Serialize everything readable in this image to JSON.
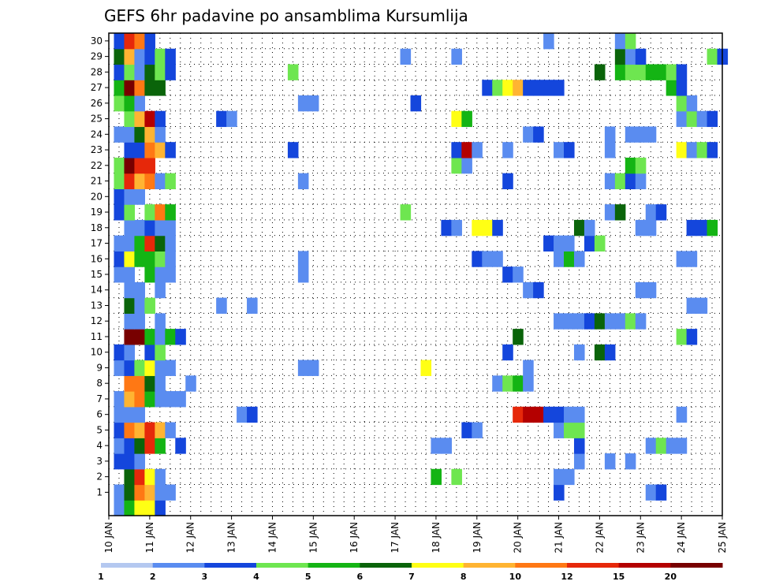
{
  "chart_data": {
    "type": "heatmap",
    "title": "GEFS 6hr padavine po ansamblima Kursumlija",
    "y_ticks": [
      "1",
      "2",
      "3",
      "4",
      "5",
      "6",
      "7",
      "8",
      "9",
      "10",
      "11",
      "12",
      "13",
      "14",
      "15",
      "16",
      "17",
      "18",
      "19",
      "20",
      "21",
      "22",
      "23",
      "24",
      "25",
      "26",
      "27",
      "28",
      "29",
      "30"
    ],
    "ylim": [
      0,
      30
    ],
    "x_ticks": [
      "10 JAN",
      "11 JAN",
      "12 JAN",
      "13 JAN",
      "14 JAN",
      "15 JAN",
      "16 JAN",
      "17 JAN",
      "18 JAN",
      "19 JAN",
      "20 JAN",
      "21 JAN",
      "22 JAN",
      "23 JAN",
      "24 JAN",
      "25 JAN"
    ],
    "xlim_days": [
      10,
      25
    ],
    "time_step_hours": 6,
    "legend": {
      "position": "bottom",
      "labels": [
        "1",
        "2",
        "3",
        "4",
        "5",
        "6",
        "7",
        "8",
        "10",
        "12",
        "15",
        "20"
      ],
      "colors": [
        "#b4c8f0",
        "#5a8cf0",
        "#1446dc",
        "#6ee650",
        "#14b414",
        "#0a640a",
        "#ffff14",
        "#ffb432",
        "#ff7814",
        "#e6280a",
        "#b40000",
        "#780000"
      ]
    },
    "cells": [
      [
        0,
        0.25,
        1
      ],
      [
        0,
        0.5,
        4
      ],
      [
        0,
        0.75,
        6
      ],
      [
        0,
        1.0,
        6
      ],
      [
        0,
        1.25,
        2
      ],
      [
        1,
        0.25,
        1
      ],
      [
        1,
        0.5,
        5
      ],
      [
        1,
        0.75,
        8
      ],
      [
        1,
        1.0,
        7
      ],
      [
        1,
        1.25,
        1
      ],
      [
        1,
        1.5,
        1
      ],
      [
        1,
        11.0,
        2
      ],
      [
        1,
        13.25,
        1
      ],
      [
        1,
        13.5,
        2
      ],
      [
        2,
        0.5,
        5
      ],
      [
        2,
        0.75,
        9
      ],
      [
        2,
        1.0,
        6
      ],
      [
        2,
        1.25,
        1
      ],
      [
        2,
        8.0,
        4
      ],
      [
        2,
        8.5,
        3
      ],
      [
        2,
        11.0,
        1
      ],
      [
        2,
        11.25,
        1
      ],
      [
        3,
        0.25,
        2
      ],
      [
        3,
        0.5,
        2
      ],
      [
        3,
        0.75,
        1
      ],
      [
        3,
        11.5,
        1
      ],
      [
        3,
        12.25,
        1
      ],
      [
        3,
        12.75,
        1
      ],
      [
        4,
        0.25,
        1
      ],
      [
        4,
        0.5,
        2
      ],
      [
        4,
        0.75,
        5
      ],
      [
        4,
        1.0,
        9
      ],
      [
        4,
        1.25,
        4
      ],
      [
        4,
        1.75,
        2
      ],
      [
        4,
        8.0,
        1
      ],
      [
        4,
        8.25,
        1
      ],
      [
        4,
        11.5,
        2
      ],
      [
        4,
        13.25,
        1
      ],
      [
        4,
        13.5,
        3
      ],
      [
        4,
        13.75,
        1
      ],
      [
        4,
        14.0,
        1
      ],
      [
        5,
        0.25,
        2
      ],
      [
        5,
        0.5,
        8
      ],
      [
        5,
        0.75,
        7
      ],
      [
        5,
        1.0,
        9
      ],
      [
        5,
        1.25,
        7
      ],
      [
        5,
        1.5,
        1
      ],
      [
        5,
        8.75,
        2
      ],
      [
        5,
        9.0,
        1
      ],
      [
        5,
        11.0,
        1
      ],
      [
        5,
        11.25,
        3
      ],
      [
        5,
        11.5,
        3
      ],
      [
        6,
        0.25,
        1
      ],
      [
        6,
        0.5,
        1
      ],
      [
        6,
        0.75,
        1
      ],
      [
        6,
        3.25,
        1
      ],
      [
        6,
        3.5,
        2
      ],
      [
        6,
        10.0,
        9
      ],
      [
        6,
        10.25,
        10
      ],
      [
        6,
        10.5,
        10
      ],
      [
        6,
        10.75,
        2
      ],
      [
        6,
        11.0,
        2
      ],
      [
        6,
        11.25,
        1
      ],
      [
        6,
        11.5,
        1
      ],
      [
        6,
        14.0,
        1
      ],
      [
        7,
        0.25,
        1
      ],
      [
        7,
        0.5,
        7
      ],
      [
        7,
        0.75,
        8
      ],
      [
        7,
        1.0,
        4
      ],
      [
        7,
        1.25,
        1
      ],
      [
        7,
        1.5,
        1
      ],
      [
        7,
        1.75,
        1
      ],
      [
        8,
        0.5,
        8
      ],
      [
        8,
        0.75,
        8
      ],
      [
        8,
        1.0,
        5
      ],
      [
        8,
        1.25,
        1
      ],
      [
        8,
        2.0,
        1
      ],
      [
        8,
        9.5,
        1
      ],
      [
        8,
        9.75,
        3
      ],
      [
        8,
        10.0,
        4
      ],
      [
        8,
        10.25,
        1
      ],
      [
        9,
        0.25,
        1
      ],
      [
        9,
        0.5,
        2
      ],
      [
        9,
        0.75,
        3
      ],
      [
        9,
        1.0,
        6
      ],
      [
        9,
        1.25,
        1
      ],
      [
        9,
        1.5,
        1
      ],
      [
        9,
        4.75,
        1
      ],
      [
        9,
        5.0,
        1
      ],
      [
        9,
        7.75,
        6
      ],
      [
        9,
        10.25,
        1
      ],
      [
        10,
        0.25,
        2
      ],
      [
        10,
        0.5,
        1
      ],
      [
        10,
        1.0,
        2
      ],
      [
        10,
        1.25,
        3
      ],
      [
        10,
        9.75,
        2
      ],
      [
        10,
        11.5,
        1
      ],
      [
        10,
        12.0,
        5
      ],
      [
        10,
        12.25,
        2
      ],
      [
        11,
        0.5,
        11
      ],
      [
        11,
        0.75,
        11
      ],
      [
        11,
        1.0,
        4
      ],
      [
        11,
        1.25,
        1
      ],
      [
        11,
        1.5,
        4
      ],
      [
        11,
        1.75,
        2
      ],
      [
        11,
        10.0,
        5
      ],
      [
        11,
        14.0,
        3
      ],
      [
        11,
        14.25,
        2
      ],
      [
        12,
        0.5,
        1
      ],
      [
        12,
        0.75,
        1
      ],
      [
        12,
        1.25,
        1
      ],
      [
        12,
        11.0,
        1
      ],
      [
        12,
        11.25,
        1
      ],
      [
        12,
        11.5,
        1
      ],
      [
        12,
        11.75,
        2
      ],
      [
        12,
        12.0,
        5
      ],
      [
        12,
        12.25,
        1
      ],
      [
        12,
        12.5,
        1
      ],
      [
        12,
        12.75,
        3
      ],
      [
        12,
        13.0,
        1
      ],
      [
        13,
        0.5,
        5
      ],
      [
        13,
        0.75,
        1
      ],
      [
        13,
        1.0,
        3
      ],
      [
        13,
        2.75,
        1
      ],
      [
        13,
        3.5,
        1
      ],
      [
        13,
        14.25,
        1
      ],
      [
        13,
        14.5,
        1
      ],
      [
        14,
        0.5,
        1
      ],
      [
        14,
        0.75,
        1
      ],
      [
        14,
        1.25,
        1
      ],
      [
        14,
        10.25,
        1
      ],
      [
        14,
        10.5,
        2
      ],
      [
        14,
        13.0,
        1
      ],
      [
        14,
        13.25,
        1
      ],
      [
        15,
        0.25,
        1
      ],
      [
        15,
        0.5,
        1
      ],
      [
        15,
        1.0,
        4
      ],
      [
        15,
        1.25,
        1
      ],
      [
        15,
        1.5,
        1
      ],
      [
        15,
        4.75,
        1
      ],
      [
        15,
        9.75,
        2
      ],
      [
        15,
        10.0,
        1
      ],
      [
        16,
        0.25,
        2
      ],
      [
        16,
        0.5,
        6
      ],
      [
        16,
        0.75,
        4
      ],
      [
        16,
        1.0,
        4
      ],
      [
        16,
        1.25,
        3
      ],
      [
        16,
        1.5,
        1
      ],
      [
        16,
        4.75,
        1
      ],
      [
        16,
        9.0,
        2
      ],
      [
        16,
        9.25,
        1
      ],
      [
        16,
        9.5,
        1
      ],
      [
        16,
        11.0,
        1
      ],
      [
        16,
        11.25,
        4
      ],
      [
        16,
        11.5,
        1
      ],
      [
        16,
        14.0,
        1
      ],
      [
        16,
        14.25,
        1
      ],
      [
        17,
        0.25,
        1
      ],
      [
        17,
        0.5,
        1
      ],
      [
        17,
        0.75,
        4
      ],
      [
        17,
        1.0,
        9
      ],
      [
        17,
        1.25,
        5
      ],
      [
        17,
        1.5,
        1
      ],
      [
        17,
        10.75,
        2
      ],
      [
        17,
        11.0,
        1
      ],
      [
        17,
        11.25,
        1
      ],
      [
        17,
        11.75,
        2
      ],
      [
        17,
        12.0,
        3
      ],
      [
        18,
        0.5,
        1
      ],
      [
        18,
        0.75,
        1
      ],
      [
        18,
        1.0,
        2
      ],
      [
        18,
        1.25,
        1
      ],
      [
        18,
        1.5,
        1
      ],
      [
        18,
        8.25,
        2
      ],
      [
        18,
        8.5,
        1
      ],
      [
        18,
        9.0,
        6
      ],
      [
        18,
        9.25,
        6
      ],
      [
        18,
        9.5,
        2
      ],
      [
        18,
        11.5,
        5
      ],
      [
        18,
        11.75,
        1
      ],
      [
        18,
        13.0,
        1
      ],
      [
        18,
        13.25,
        1
      ],
      [
        18,
        14.25,
        2
      ],
      [
        18,
        14.5,
        2
      ],
      [
        18,
        14.75,
        4
      ],
      [
        19,
        0.25,
        2
      ],
      [
        19,
        0.5,
        3
      ],
      [
        19,
        1.0,
        3
      ],
      [
        19,
        1.25,
        8
      ],
      [
        19,
        1.5,
        4
      ],
      [
        19,
        7.25,
        3
      ],
      [
        19,
        12.25,
        1
      ],
      [
        19,
        12.5,
        5
      ],
      [
        19,
        13.25,
        1
      ],
      [
        19,
        13.5,
        2
      ],
      [
        20,
        0.25,
        2
      ],
      [
        20,
        0.5,
        1
      ],
      [
        20,
        0.75,
        1
      ],
      [
        21,
        0.25,
        3
      ],
      [
        21,
        0.5,
        9
      ],
      [
        21,
        0.75,
        7
      ],
      [
        21,
        1.0,
        8
      ],
      [
        21,
        1.25,
        1
      ],
      [
        21,
        1.5,
        3
      ],
      [
        21,
        4.75,
        1
      ],
      [
        21,
        9.75,
        2
      ],
      [
        21,
        12.25,
        1
      ],
      [
        21,
        12.5,
        3
      ],
      [
        21,
        12.75,
        2
      ],
      [
        21,
        13.0,
        1
      ],
      [
        22,
        0.25,
        3
      ],
      [
        22,
        0.5,
        11
      ],
      [
        22,
        0.75,
        9
      ],
      [
        22,
        1.0,
        9
      ],
      [
        22,
        8.5,
        3
      ],
      [
        22,
        8.75,
        1
      ],
      [
        22,
        12.75,
        4
      ],
      [
        22,
        13.0,
        3
      ],
      [
        23,
        0.5,
        2
      ],
      [
        23,
        0.75,
        2
      ],
      [
        23,
        1.0,
        8
      ],
      [
        23,
        1.25,
        7
      ],
      [
        23,
        1.5,
        2
      ],
      [
        23,
        4.5,
        2
      ],
      [
        23,
        8.5,
        2
      ],
      [
        23,
        8.75,
        10
      ],
      [
        23,
        9.0,
        1
      ],
      [
        23,
        9.75,
        1
      ],
      [
        23,
        11.0,
        1
      ],
      [
        23,
        11.25,
        2
      ],
      [
        23,
        12.25,
        1
      ],
      [
        23,
        14.0,
        6
      ],
      [
        23,
        14.25,
        1
      ],
      [
        23,
        14.5,
        3
      ],
      [
        23,
        14.75,
        2
      ],
      [
        24,
        0.25,
        1
      ],
      [
        24,
        0.5,
        1
      ],
      [
        24,
        0.75,
        5
      ],
      [
        24,
        1.0,
        7
      ],
      [
        24,
        1.25,
        1
      ],
      [
        24,
        10.25,
        1
      ],
      [
        24,
        10.5,
        2
      ],
      [
        24,
        12.25,
        1
      ],
      [
        24,
        12.75,
        1
      ],
      [
        24,
        13.0,
        1
      ],
      [
        24,
        13.25,
        1
      ],
      [
        25,
        0.5,
        3
      ],
      [
        25,
        0.75,
        7
      ],
      [
        25,
        1.0,
        10
      ],
      [
        25,
        1.25,
        2
      ],
      [
        25,
        2.75,
        2
      ],
      [
        25,
        3.0,
        1
      ],
      [
        25,
        8.5,
        6
      ],
      [
        25,
        8.75,
        4
      ],
      [
        25,
        14.0,
        1
      ],
      [
        25,
        14.25,
        3
      ],
      [
        25,
        14.5,
        1
      ],
      [
        25,
        14.75,
        2
      ],
      [
        26,
        0.25,
        3
      ],
      [
        26,
        0.5,
        4
      ],
      [
        26,
        0.75,
        1
      ],
      [
        26,
        4.75,
        1
      ],
      [
        26,
        5.0,
        1
      ],
      [
        26,
        7.5,
        2
      ],
      [
        26,
        14.0,
        3
      ],
      [
        26,
        14.25,
        1
      ],
      [
        27,
        0.25,
        4
      ],
      [
        27,
        0.5,
        11
      ],
      [
        27,
        0.75,
        8
      ],
      [
        27,
        1.0,
        5
      ],
      [
        27,
        1.25,
        5
      ],
      [
        27,
        9.25,
        2
      ],
      [
        27,
        9.5,
        3
      ],
      [
        27,
        9.75,
        6
      ],
      [
        27,
        10.0,
        7
      ],
      [
        27,
        10.25,
        2
      ],
      [
        27,
        10.5,
        2
      ],
      [
        27,
        10.75,
        2
      ],
      [
        27,
        11.0,
        2
      ],
      [
        27,
        13.75,
        4
      ],
      [
        27,
        14.0,
        2
      ],
      [
        28,
        0.25,
        2
      ],
      [
        28,
        0.5,
        3
      ],
      [
        28,
        0.75,
        1
      ],
      [
        28,
        1.0,
        5
      ],
      [
        28,
        1.25,
        3
      ],
      [
        28,
        1.5,
        2
      ],
      [
        28,
        4.5,
        3
      ],
      [
        28,
        12.0,
        5
      ],
      [
        28,
        12.5,
        4
      ],
      [
        28,
        12.75,
        3
      ],
      [
        28,
        13.0,
        3
      ],
      [
        28,
        13.25,
        4
      ],
      [
        28,
        13.5,
        4
      ],
      [
        28,
        13.75,
        3
      ],
      [
        28,
        14.0,
        2
      ],
      [
        29,
        0.25,
        5
      ],
      [
        29,
        0.5,
        7
      ],
      [
        29,
        0.75,
        1
      ],
      [
        29,
        1.0,
        2
      ],
      [
        29,
        1.25,
        3
      ],
      [
        29,
        1.5,
        2
      ],
      [
        29,
        7.25,
        1
      ],
      [
        29,
        8.5,
        1
      ],
      [
        29,
        12.5,
        5
      ],
      [
        29,
        12.75,
        1
      ],
      [
        29,
        13.0,
        2
      ],
      [
        29,
        14.75,
        3
      ],
      [
        29,
        15.0,
        2
      ],
      [
        30,
        0.25,
        2
      ],
      [
        30,
        0.5,
        9
      ],
      [
        30,
        0.75,
        8
      ],
      [
        30,
        1.0,
        2
      ],
      [
        30,
        10.75,
        1
      ],
      [
        30,
        12.5,
        1
      ],
      [
        30,
        12.75,
        3
      ]
    ]
  }
}
